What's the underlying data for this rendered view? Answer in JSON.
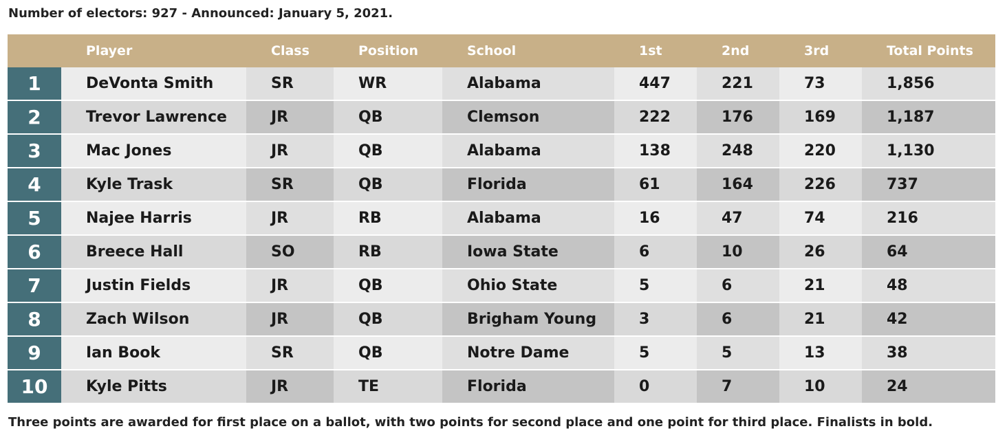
{
  "intro": "Number of electors: 927 - Announced: January 5, 2021.",
  "headers": {
    "rank": "",
    "player": "Player",
    "class": "Class",
    "position": "Position",
    "school": "School",
    "first": "1st",
    "second": "2nd",
    "third": "3rd",
    "total": "Total Points"
  },
  "rows": [
    {
      "rank": "1",
      "player": "DeVonta Smith",
      "class": "SR",
      "position": "WR",
      "school": "Alabama",
      "first": "447",
      "second": "221",
      "third": "73",
      "total": "1,856"
    },
    {
      "rank": "2",
      "player": "Trevor Lawrence",
      "class": "JR",
      "position": "QB",
      "school": "Clemson",
      "first": "222",
      "second": "176",
      "third": "169",
      "total": "1,187"
    },
    {
      "rank": "3",
      "player": "Mac Jones",
      "class": "JR",
      "position": "QB",
      "school": "Alabama",
      "first": "138",
      "second": "248",
      "third": "220",
      "total": "1,130"
    },
    {
      "rank": "4",
      "player": "Kyle Trask",
      "class": "SR",
      "position": "QB",
      "school": "Florida",
      "first": "61",
      "second": "164",
      "third": "226",
      "total": "737"
    },
    {
      "rank": "5",
      "player": "Najee Harris",
      "class": "JR",
      "position": "RB",
      "school": "Alabama",
      "first": "16",
      "second": "47",
      "third": "74",
      "total": "216"
    },
    {
      "rank": "6",
      "player": "Breece Hall",
      "class": "SO",
      "position": "RB",
      "school": "Iowa State",
      "first": "6",
      "second": "10",
      "third": "26",
      "total": "64"
    },
    {
      "rank": "7",
      "player": "Justin Fields",
      "class": "JR",
      "position": "QB",
      "school": "Ohio State",
      "first": "5",
      "second": "6",
      "third": "21",
      "total": "48"
    },
    {
      "rank": "8",
      "player": "Zach Wilson",
      "class": "JR",
      "position": "QB",
      "school": "Brigham Young",
      "first": "3",
      "second": "6",
      "third": "21",
      "total": "42"
    },
    {
      "rank": "9",
      "player": "Ian Book",
      "class": "SR",
      "position": "QB",
      "school": "Notre Dame",
      "first": "5",
      "second": "5",
      "third": "13",
      "total": "38"
    },
    {
      "rank": "10",
      "player": "Kyle Pitts",
      "class": "JR",
      "position": "TE",
      "school": "Florida",
      "first": "0",
      "second": "7",
      "third": "10",
      "total": "24"
    }
  ],
  "footnote": "Three points are awarded for first place on a ballot, with two points for second place and one point for third place. Finalists in bold.",
  "colors": {
    "header_bg": "#c8b088",
    "rank_bg": "#456f79",
    "row_light": "#ececec",
    "row_dark": "#d9d9d9"
  }
}
